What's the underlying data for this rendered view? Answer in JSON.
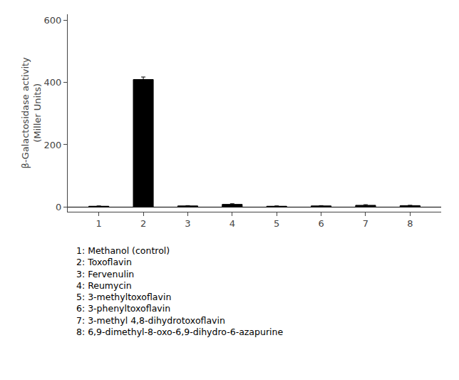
{
  "chart_data": {
    "type": "bar",
    "x": [
      1,
      2,
      3,
      4,
      5,
      6,
      7,
      8
    ],
    "values": [
      2,
      410,
      3,
      8,
      2,
      3,
      5,
      4
    ],
    "error_bars": [
      1,
      8,
      1,
      2,
      1,
      1,
      2,
      1
    ],
    "color": "#000000",
    "xlim": [
      0.3,
      8.7
    ],
    "xticks": [
      1,
      2,
      3,
      4,
      5,
      6,
      7,
      8
    ],
    "ylim": [
      -15,
      620
    ],
    "yticks": [
      0,
      200,
      400,
      600
    ],
    "ylabel": "β-Galactosidase activity\n(Miller Units)",
    "annotations": [
      "1: Methanol (control)",
      "2: Toxoflavin",
      "3: Fervenulin",
      "4: Reumycin",
      "5: 3-methyltoxoflavin",
      "6: 3-phenyltoxoflavin",
      "7: 3-methyl 4,8-dihydrotoxoflavin",
      "8: 6,9-dimethyl-8-oxo-6,9-dihydro-6-azapurine"
    ],
    "grid": false
  }
}
